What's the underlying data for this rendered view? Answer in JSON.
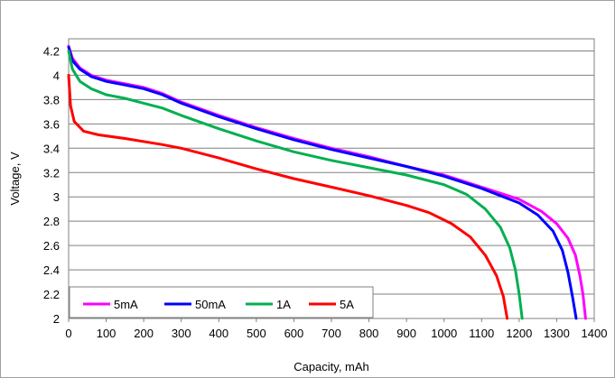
{
  "chart_data": {
    "type": "line",
    "title": "",
    "xlabel": "Capacity, mAh",
    "ylabel": "Voltage, V",
    "xlim": [
      0,
      1400
    ],
    "ylim": [
      2,
      4.3
    ],
    "x_ticks": [
      0,
      100,
      200,
      300,
      400,
      500,
      600,
      700,
      800,
      900,
      1000,
      1100,
      1200,
      1300,
      1400
    ],
    "y_ticks": [
      2,
      2.2,
      2.4,
      2.6,
      2.8,
      3,
      3.2,
      3.4,
      3.6,
      3.8,
      4,
      4.2
    ],
    "y_tick_labels": [
      "2",
      "2.2",
      "2.4",
      "2.6",
      "2.8",
      "3",
      "3.2",
      "3.4",
      "3.6",
      "3.8",
      "4",
      "4.2"
    ],
    "grid": "horizontal",
    "legend_position": "bottom-left",
    "series": [
      {
        "name": "5mA",
        "color": "#ff00ff",
        "points": [
          [
            0,
            4.24
          ],
          [
            10,
            4.14
          ],
          [
            30,
            4.06
          ],
          [
            60,
            4.0
          ],
          [
            100,
            3.96
          ],
          [
            150,
            3.93
          ],
          [
            200,
            3.9
          ],
          [
            250,
            3.85
          ],
          [
            300,
            3.78
          ],
          [
            400,
            3.67
          ],
          [
            500,
            3.57
          ],
          [
            600,
            3.48
          ],
          [
            700,
            3.4
          ],
          [
            800,
            3.33
          ],
          [
            900,
            3.25
          ],
          [
            1000,
            3.18
          ],
          [
            1100,
            3.08
          ],
          [
            1200,
            2.98
          ],
          [
            1260,
            2.88
          ],
          [
            1300,
            2.78
          ],
          [
            1330,
            2.66
          ],
          [
            1350,
            2.52
          ],
          [
            1362,
            2.35
          ],
          [
            1370,
            2.2
          ],
          [
            1377,
            2.0
          ]
        ]
      },
      {
        "name": "50mA",
        "color": "#0000ff",
        "points": [
          [
            0,
            4.23
          ],
          [
            10,
            4.12
          ],
          [
            30,
            4.05
          ],
          [
            60,
            3.99
          ],
          [
            100,
            3.95
          ],
          [
            150,
            3.92
          ],
          [
            200,
            3.89
          ],
          [
            250,
            3.84
          ],
          [
            300,
            3.77
          ],
          [
            400,
            3.66
          ],
          [
            500,
            3.56
          ],
          [
            600,
            3.47
          ],
          [
            700,
            3.39
          ],
          [
            800,
            3.32
          ],
          [
            900,
            3.25
          ],
          [
            1000,
            3.17
          ],
          [
            1100,
            3.07
          ],
          [
            1200,
            2.95
          ],
          [
            1250,
            2.85
          ],
          [
            1290,
            2.72
          ],
          [
            1315,
            2.56
          ],
          [
            1330,
            2.38
          ],
          [
            1342,
            2.18
          ],
          [
            1352,
            2.0
          ]
        ]
      },
      {
        "name": "1A",
        "color": "#00b050",
        "points": [
          [
            0,
            4.2
          ],
          [
            10,
            4.05
          ],
          [
            30,
            3.95
          ],
          [
            60,
            3.89
          ],
          [
            100,
            3.84
          ],
          [
            150,
            3.81
          ],
          [
            200,
            3.77
          ],
          [
            250,
            3.73
          ],
          [
            300,
            3.67
          ],
          [
            400,
            3.56
          ],
          [
            500,
            3.46
          ],
          [
            600,
            3.37
          ],
          [
            700,
            3.3
          ],
          [
            800,
            3.24
          ],
          [
            900,
            3.18
          ],
          [
            1000,
            3.1
          ],
          [
            1060,
            3.02
          ],
          [
            1110,
            2.9
          ],
          [
            1150,
            2.75
          ],
          [
            1175,
            2.58
          ],
          [
            1190,
            2.4
          ],
          [
            1200,
            2.2
          ],
          [
            1208,
            2.0
          ]
        ]
      },
      {
        "name": "5A",
        "color": "#ff0000",
        "points": [
          [
            0,
            4.0
          ],
          [
            5,
            3.75
          ],
          [
            15,
            3.62
          ],
          [
            40,
            3.54
          ],
          [
            80,
            3.51
          ],
          [
            150,
            3.48
          ],
          [
            250,
            3.43
          ],
          [
            300,
            3.4
          ],
          [
            400,
            3.32
          ],
          [
            500,
            3.23
          ],
          [
            600,
            3.15
          ],
          [
            700,
            3.08
          ],
          [
            800,
            3.01
          ],
          [
            900,
            2.93
          ],
          [
            960,
            2.87
          ],
          [
            1020,
            2.78
          ],
          [
            1070,
            2.67
          ],
          [
            1110,
            2.52
          ],
          [
            1140,
            2.35
          ],
          [
            1158,
            2.18
          ],
          [
            1168,
            2.0
          ]
        ]
      }
    ]
  }
}
